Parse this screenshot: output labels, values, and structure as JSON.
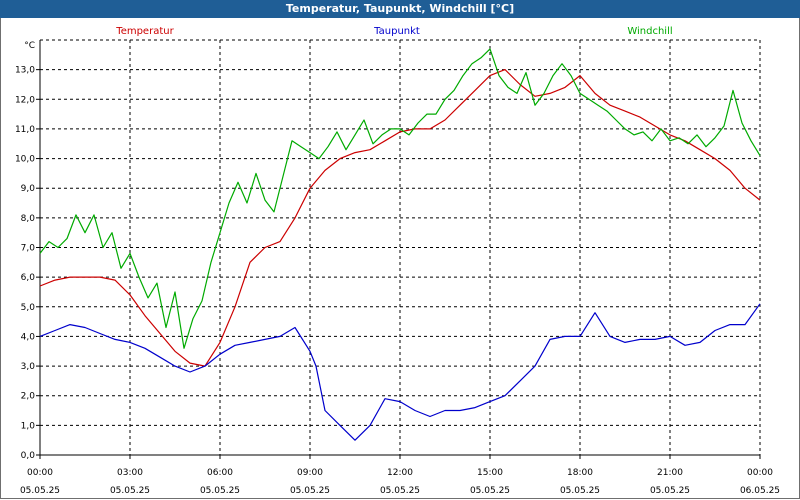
{
  "window": {
    "title": "Temperatur, Taupunkt, Windchill [°C]"
  },
  "chart_data": {
    "type": "line",
    "title": "Temperatur, Taupunkt, Windchill [°C]",
    "ylabel": "°C",
    "ylim": [
      0,
      14
    ],
    "xlim": [
      0,
      24
    ],
    "grid": true,
    "yticks": [
      "0,0",
      "1,0",
      "2,0",
      "3,0",
      "4,0",
      "5,0",
      "6,0",
      "7,0",
      "8,0",
      "9,0",
      "10,0",
      "11,0",
      "12,0",
      "13,0"
    ],
    "xticks": [
      {
        "time": "00:00",
        "date": "05.05.25"
      },
      {
        "time": "03:00",
        "date": "05.05.25"
      },
      {
        "time": "06:00",
        "date": "05.05.25"
      },
      {
        "time": "09:00",
        "date": "05.05.25"
      },
      {
        "time": "12:00",
        "date": "05.05.25"
      },
      {
        "time": "15:00",
        "date": "05.05.25"
      },
      {
        "time": "18:00",
        "date": "05.05.25"
      },
      {
        "time": "21:00",
        "date": "05.05.25"
      },
      {
        "time": "00:00",
        "date": "06.05.25"
      }
    ],
    "series": [
      {
        "name": "Temperatur",
        "color": "#cc0000",
        "x": [
          0,
          0.5,
          1,
          1.5,
          2,
          2.5,
          3,
          3.5,
          4,
          4.5,
          5,
          5.5,
          6,
          6.5,
          7,
          7.5,
          8,
          8.5,
          9,
          9.5,
          10,
          10.5,
          11,
          11.5,
          12,
          12.5,
          13,
          13.5,
          14,
          14.5,
          15,
          15.5,
          16,
          16.5,
          17,
          17.5,
          18,
          18.5,
          19,
          19.5,
          20,
          20.5,
          21,
          21.5,
          22,
          22.5,
          23,
          23.5,
          24
        ],
        "values": [
          5.7,
          5.9,
          6.0,
          6.0,
          6.0,
          5.9,
          5.4,
          4.7,
          4.1,
          3.5,
          3.1,
          3.0,
          3.8,
          5.0,
          6.5,
          7.0,
          7.2,
          8.0,
          9.0,
          9.6,
          10.0,
          10.2,
          10.3,
          10.6,
          10.9,
          11.0,
          11.0,
          11.3,
          11.8,
          12.3,
          12.8,
          13.0,
          12.5,
          12.1,
          12.2,
          12.4,
          12.8,
          12.2,
          11.8,
          11.6,
          11.4,
          11.1,
          10.8,
          10.6,
          10.3,
          10.0,
          9.6,
          9.0,
          8.6
        ]
      },
      {
        "name": "Taupunkt",
        "color": "#0000cc",
        "x": [
          0,
          0.5,
          1,
          1.5,
          2,
          2.5,
          3,
          3.5,
          4,
          4.5,
          5,
          5.5,
          6,
          6.5,
          7,
          7.5,
          8,
          8.5,
          9,
          9.2,
          9.5,
          10,
          10.5,
          11,
          11.5,
          12,
          12.5,
          13,
          13.5,
          14,
          14.5,
          15,
          15.5,
          16,
          16.5,
          17,
          17.5,
          18,
          18.5,
          19,
          19.5,
          20,
          20.5,
          21,
          21.5,
          22,
          22.5,
          23,
          23.5,
          24
        ],
        "values": [
          4.0,
          4.2,
          4.4,
          4.3,
          4.1,
          3.9,
          3.8,
          3.6,
          3.3,
          3.0,
          2.8,
          3.0,
          3.4,
          3.7,
          3.8,
          3.9,
          4.0,
          4.3,
          3.5,
          3.0,
          1.5,
          1.0,
          0.5,
          1.0,
          1.9,
          1.8,
          1.5,
          1.3,
          1.5,
          1.5,
          1.6,
          1.8,
          2.0,
          2.5,
          3.0,
          3.9,
          4.0,
          4.0,
          4.8,
          4.0,
          3.8,
          3.9,
          3.9,
          4.0,
          3.7,
          3.8,
          4.2,
          4.4,
          4.4,
          5.1
        ]
      },
      {
        "name": "Windchill",
        "color": "#00aa00",
        "x": [
          0,
          0.3,
          0.6,
          0.9,
          1.2,
          1.5,
          1.8,
          2.1,
          2.4,
          2.7,
          3.0,
          3.3,
          3.6,
          3.9,
          4.2,
          4.5,
          4.8,
          5.1,
          5.4,
          5.7,
          6.0,
          6.3,
          6.6,
          6.9,
          7.2,
          7.5,
          7.8,
          8.1,
          8.4,
          8.7,
          9.0,
          9.3,
          9.6,
          9.9,
          10.2,
          10.5,
          10.8,
          11.1,
          11.4,
          11.7,
          12.0,
          12.3,
          12.6,
          12.9,
          13.2,
          13.5,
          13.8,
          14.1,
          14.4,
          14.7,
          15.0,
          15.3,
          15.6,
          15.9,
          16.2,
          16.5,
          16.8,
          17.1,
          17.4,
          17.7,
          18.0,
          18.3,
          18.6,
          18.9,
          19.2,
          19.5,
          19.8,
          20.1,
          20.4,
          20.7,
          21.0,
          21.3,
          21.6,
          21.9,
          22.2,
          22.5,
          22.8,
          23.1,
          23.4,
          23.7,
          24.0
        ],
        "values": [
          6.8,
          7.2,
          7.0,
          7.3,
          8.1,
          7.5,
          8.1,
          7.0,
          7.5,
          6.3,
          6.8,
          6.0,
          5.3,
          5.8,
          4.3,
          5.5,
          3.6,
          4.6,
          5.2,
          6.5,
          7.5,
          8.5,
          9.2,
          8.5,
          9.5,
          8.6,
          8.2,
          9.4,
          10.6,
          10.4,
          10.2,
          10.0,
          10.4,
          10.9,
          10.3,
          10.8,
          11.3,
          10.5,
          10.8,
          11.0,
          11.0,
          10.8,
          11.2,
          11.5,
          11.5,
          12.0,
          12.3,
          12.8,
          13.2,
          13.4,
          13.7,
          12.8,
          12.4,
          12.2,
          12.9,
          11.8,
          12.2,
          12.8,
          13.2,
          12.8,
          12.2,
          12.0,
          11.8,
          11.6,
          11.3,
          11.0,
          10.8,
          10.9,
          10.6,
          11.0,
          10.6,
          10.7,
          10.5,
          10.8,
          10.4,
          10.7,
          11.1,
          12.3,
          11.2,
          10.6,
          10.1
        ]
      }
    ]
  }
}
